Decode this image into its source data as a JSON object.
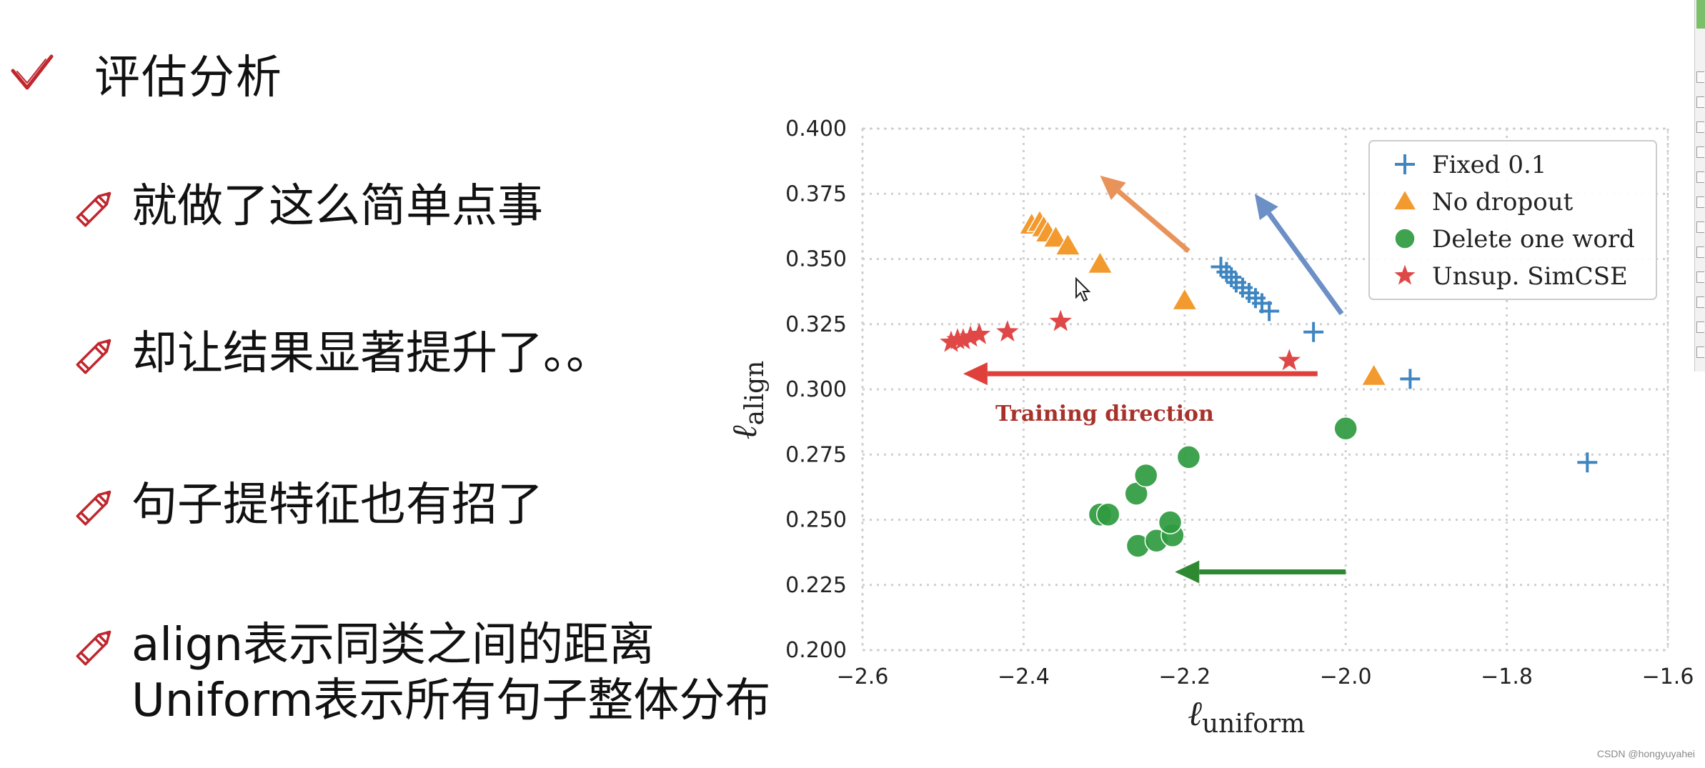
{
  "slide": {
    "title": "评估分析",
    "bullets": [
      {
        "lines": [
          "就做了这么简单点事"
        ]
      },
      {
        "lines": [
          "却让结果显著提升了。。"
        ]
      },
      {
        "lines": [
          "句子提特征也有招了"
        ]
      },
      {
        "lines": [
          "align表示同类之间的距离",
          "Uniform表示所有句子整体分布"
        ]
      }
    ]
  },
  "watermark": "CSDN @hongyuyahei",
  "colors": {
    "check": "#c0262d",
    "pencil": "#c0262d",
    "fixed": "#3f86c1",
    "nodrop": "#f39a2f",
    "delete": "#2f9a3f",
    "simcse": "#e04848",
    "arrow_red": "#e0403a",
    "arrow_orange": "#e8935a",
    "arrow_blue": "#6c8fc6",
    "arrow_green": "#2e8a32",
    "annotation": "#a8322b"
  },
  "chart_data": {
    "type": "scatter",
    "xlim": [
      -2.6,
      -1.6
    ],
    "ylim": [
      0.2,
      0.4
    ],
    "xticks": [
      "−2.6",
      "−2.4",
      "−2.2",
      "−2.0",
      "−1.8",
      "−1.6"
    ],
    "yticks": [
      "0.200",
      "0.225",
      "0.250",
      "0.275",
      "0.300",
      "0.325",
      "0.350",
      "0.375",
      "0.400"
    ],
    "grid": true,
    "legend_position": "top-right",
    "xlabel_main": "ℓ",
    "xlabel_sub": "uniform",
    "ylabel_main": "ℓ",
    "ylabel_sub": "align",
    "annotation": "Training direction",
    "series": [
      {
        "name": "Fixed 0.1",
        "marker": "plus",
        "color": "#3f86c1",
        "x": [
          -2.155,
          -2.148,
          -2.142,
          -2.136,
          -2.128,
          -2.12,
          -2.112,
          -2.104,
          -2.095,
          -2.04,
          -1.92,
          -1.7
        ],
        "y": [
          0.347,
          0.345,
          0.343,
          0.341,
          0.339,
          0.337,
          0.335,
          0.333,
          0.33,
          0.322,
          0.304,
          0.272
        ]
      },
      {
        "name": "No dropout",
        "marker": "triangle",
        "color": "#f39a2f",
        "x": [
          -2.39,
          -2.38,
          -2.375,
          -2.37,
          -2.36,
          -2.345,
          -2.305,
          -2.2,
          -1.965
        ],
        "y": [
          0.363,
          0.364,
          0.362,
          0.36,
          0.358,
          0.355,
          0.348,
          0.334,
          0.305
        ]
      },
      {
        "name": "Delete one word",
        "marker": "circle",
        "color": "#2f9a3f",
        "x": [
          -2.305,
          -2.295,
          -2.26,
          -2.248,
          -2.258,
          -2.235,
          -2.215,
          -2.218,
          -2.195,
          -2.0
        ],
        "y": [
          0.252,
          0.252,
          0.26,
          0.267,
          0.24,
          0.242,
          0.244,
          0.249,
          0.274,
          0.285
        ]
      },
      {
        "name": "Unsup. SimCSE",
        "marker": "star",
        "color": "#e04848",
        "x": [
          -2.49,
          -2.482,
          -2.475,
          -2.466,
          -2.455,
          -2.42,
          -2.354,
          -2.07
        ],
        "y": [
          0.318,
          0.319,
          0.319,
          0.32,
          0.321,
          0.322,
          0.326,
          0.311
        ]
      }
    ],
    "arrows": [
      {
        "color": "#e8935a",
        "from": [
          -2.195,
          0.353
        ],
        "to": [
          -2.305,
          0.382
        ]
      },
      {
        "color": "#6c8fc6",
        "from": [
          -2.005,
          0.329
        ],
        "to": [
          -2.113,
          0.375
        ]
      },
      {
        "color": "#e0403a",
        "from": [
          -2.035,
          0.306
        ],
        "to": [
          -2.475,
          0.306
        ]
      },
      {
        "color": "#2e8a32",
        "from": [
          -2.0,
          0.23
        ],
        "to": [
          -2.212,
          0.23
        ]
      }
    ]
  }
}
